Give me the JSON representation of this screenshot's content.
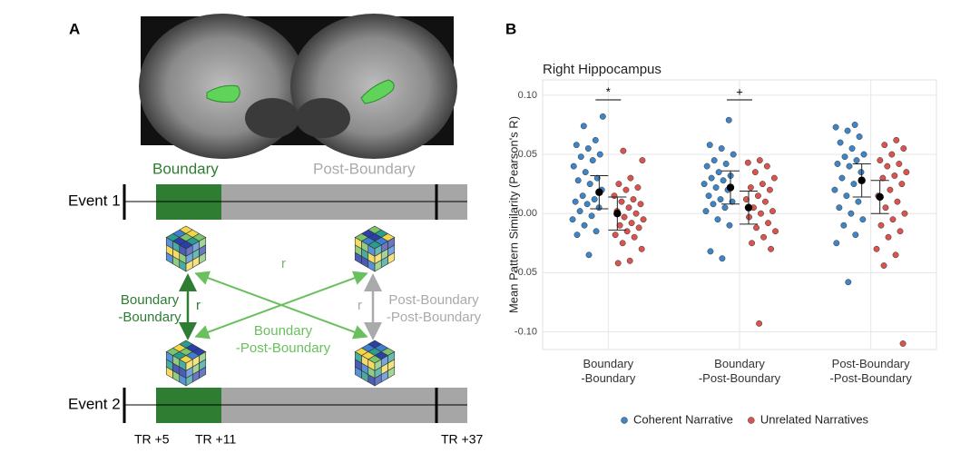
{
  "panel_a": {
    "label": "A",
    "phase_labels": [
      "Boundary",
      "Post-Boundary"
    ],
    "events": [
      "Event 1",
      "Event 2"
    ],
    "comparisons": [
      {
        "label": "Boundary\n-Boundary",
        "r": "r"
      },
      {
        "label": "Boundary\n-Post-Boundary",
        "r": "r"
      },
      {
        "label": "Post-Boundary\n-Post-Boundary",
        "r": "r"
      }
    ],
    "tr_labels": [
      "TR +5",
      "TR +11",
      "TR +37"
    ]
  },
  "panel_b": {
    "label": "B"
  },
  "chart_data": {
    "type": "dot",
    "title": "Right Hippocampus",
    "y_label": "Mean Pattern Similarity (Pearson's R)",
    "categories": [
      "Boundary\n-Boundary",
      "Boundary\n-Post-Boundary",
      "Post-Boundary\n-Post-Boundary"
    ],
    "significance": [
      "*",
      "+",
      null
    ],
    "ylim": [
      -0.115,
      0.113
    ],
    "yticks": [
      {
        "value": -0.1,
        "label": "-0.10"
      },
      {
        "value": -0.05,
        "label": "-0.05"
      },
      {
        "value": 0,
        "label": "0.00"
      },
      {
        "value": 0.05,
        "label": "0.05"
      },
      {
        "value": 0.1,
        "label": "0.10"
      }
    ],
    "grid": true,
    "legend": "bottom",
    "series": [
      {
        "name": "Coherent Narrative",
        "color": "#3d85c6",
        "values": [
          [
            0.082,
            0.074,
            0.062,
            0.058,
            0.055,
            0.05,
            0.048,
            0.045,
            0.04,
            0.035,
            0.03,
            0.028,
            0.025,
            0.02,
            0.015,
            0.012,
            0.01,
            0.008,
            0.005,
            0.002,
            -0.002,
            -0.005,
            -0.01,
            -0.015,
            -0.018,
            -0.035
          ],
          [
            0.079,
            0.058,
            0.055,
            0.05,
            0.045,
            0.042,
            0.04,
            0.035,
            0.032,
            0.03,
            0.028,
            0.025,
            0.022,
            0.02,
            0.015,
            0.012,
            0.01,
            0.008,
            0.005,
            0.002,
            -0.005,
            -0.01,
            -0.032,
            -0.038
          ],
          [
            0.075,
            0.073,
            0.07,
            0.065,
            0.06,
            0.055,
            0.05,
            0.048,
            0.045,
            0.042,
            0.04,
            0.035,
            0.03,
            0.025,
            0.02,
            0.015,
            0.01,
            0.005,
            0.0,
            -0.005,
            -0.01,
            -0.018,
            -0.025,
            -0.058
          ]
        ],
        "means": [
          0.018,
          0.022,
          0.028
        ],
        "errors": [
          0.014,
          0.014,
          0.014
        ]
      },
      {
        "name": "Unrelated Narratives",
        "color": "#d9534f",
        "values": [
          [
            0.053,
            0.045,
            0.03,
            0.025,
            0.022,
            0.02,
            0.015,
            0.012,
            0.01,
            0.008,
            0.005,
            0.002,
            0.0,
            -0.003,
            -0.005,
            -0.008,
            -0.01,
            -0.012,
            -0.015,
            -0.018,
            -0.02,
            -0.025,
            -0.03,
            -0.04,
            -0.042
          ],
          [
            0.045,
            0.043,
            0.04,
            0.035,
            0.03,
            0.025,
            0.022,
            0.02,
            0.015,
            0.012,
            0.01,
            0.005,
            0.002,
            0.0,
            -0.003,
            -0.008,
            -0.012,
            -0.015,
            -0.02,
            -0.025,
            -0.03,
            -0.093
          ],
          [
            0.062,
            0.058,
            0.055,
            0.05,
            0.045,
            0.042,
            0.04,
            0.035,
            0.032,
            0.03,
            0.025,
            0.02,
            0.015,
            0.01,
            0.005,
            0.0,
            -0.005,
            -0.01,
            -0.015,
            -0.02,
            -0.03,
            -0.035,
            -0.044,
            -0.11
          ]
        ],
        "means": [
          0.0,
          0.005,
          0.014
        ],
        "errors": [
          0.014,
          0.014,
          0.014
        ]
      }
    ]
  }
}
